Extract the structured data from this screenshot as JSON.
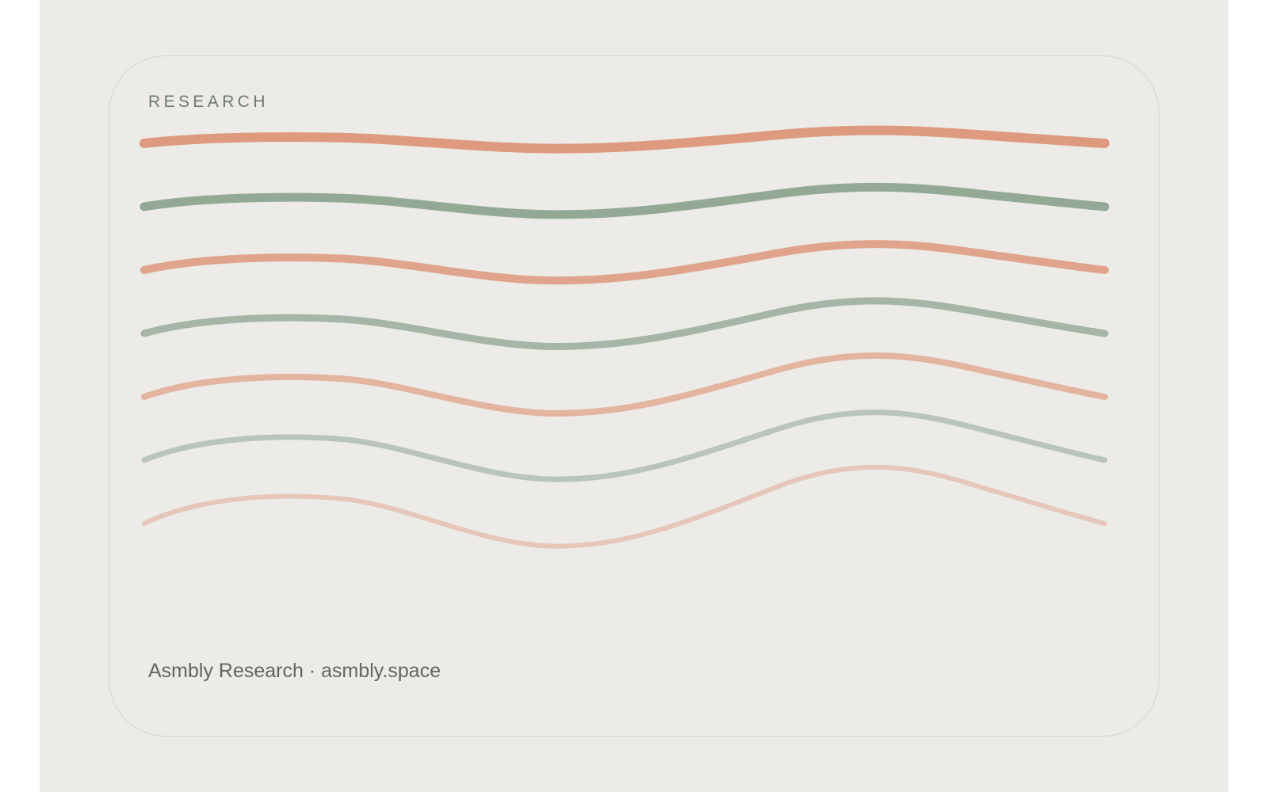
{
  "card": {
    "eyebrow": "RESEARCH",
    "footer": "Asmbly Research · asmbly.space"
  },
  "palette": {
    "background": "#ecebe7",
    "card_border": "#d5d3cd",
    "coral": "#de9a7f",
    "sage": "#93a996",
    "text_muted": "#6f7a6f"
  },
  "waves": [
    {
      "name": "wave-1",
      "color": "#de9a7f",
      "opacity": 1.0
    },
    {
      "name": "wave-2",
      "color": "#93a996",
      "opacity": 1.0
    },
    {
      "name": "wave-3",
      "color": "#de9a7f",
      "opacity": 0.88
    },
    {
      "name": "wave-4",
      "color": "#93a996",
      "opacity": 0.8
    },
    {
      "name": "wave-5",
      "color": "#de9a7f",
      "opacity": 0.68
    },
    {
      "name": "wave-6",
      "color": "#93a996",
      "opacity": 0.58
    },
    {
      "name": "wave-7",
      "color": "#de9a7f",
      "opacity": 0.45
    }
  ]
}
